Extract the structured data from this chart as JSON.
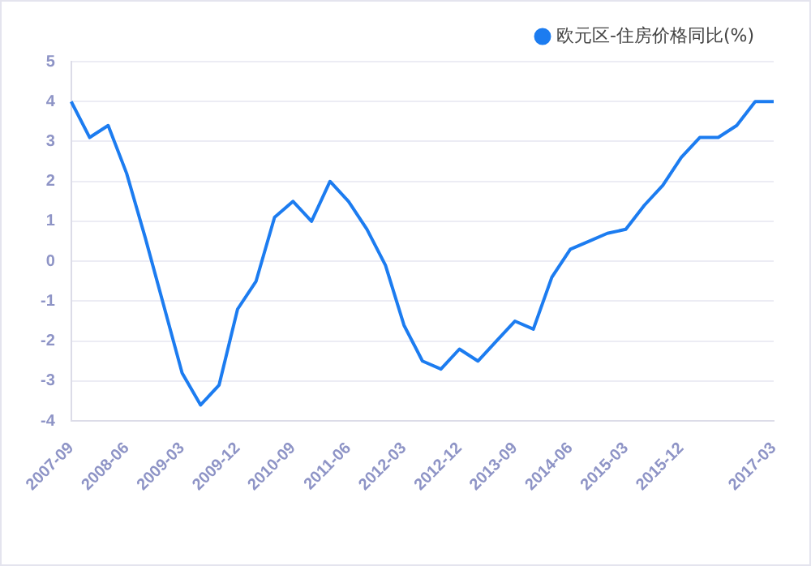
{
  "chart_data": {
    "type": "line",
    "categories": [
      "2007-09",
      null,
      null,
      "2008-06",
      null,
      null,
      "2009-03",
      null,
      null,
      "2009-12",
      null,
      null,
      "2010-09",
      null,
      null,
      "2011-06",
      null,
      null,
      "2012-03",
      null,
      null,
      "2012-12",
      null,
      null,
      "2013-09",
      null,
      null,
      "2014-06",
      null,
      null,
      "2015-03",
      null,
      null,
      "2015-12",
      null,
      null,
      null,
      null,
      "2017-03"
    ],
    "series": [
      {
        "name": "欧元区-住房价格同比(%)",
        "color": "#1c7cf0",
        "values": [
          4.0,
          3.1,
          3.4,
          2.2,
          0.6,
          -1.1,
          -2.8,
          -3.6,
          -3.1,
          -1.2,
          -0.5,
          1.1,
          1.5,
          1.0,
          2.0,
          1.5,
          0.8,
          -0.1,
          -1.6,
          -2.5,
          -2.7,
          -2.2,
          -2.5,
          -2.0,
          -1.5,
          -1.7,
          -0.4,
          0.3,
          0.5,
          0.7,
          0.8,
          1.4,
          1.9,
          2.6,
          3.1,
          3.1,
          3.4,
          4.0,
          4.0
        ]
      }
    ],
    "ylim": [
      -4,
      5
    ],
    "yticks": [
      -4,
      -3,
      -2,
      -1,
      0,
      1,
      2,
      3,
      4,
      5
    ],
    "grid": "y",
    "legend": "top right",
    "marker": "none",
    "line_style": "solid"
  }
}
